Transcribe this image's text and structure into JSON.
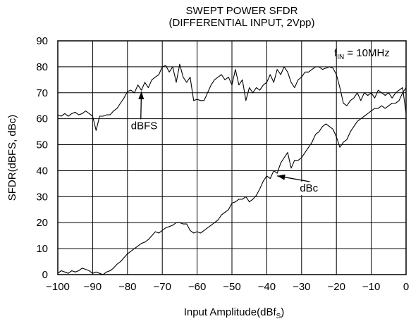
{
  "chart_data": {
    "type": "line",
    "title": "SWEPT POWER SFDR",
    "subtitle": "(DIFFERENTIAL INPUT, 2Vpp)",
    "xlabel": "Input Amplitude(dBf",
    "xlabel_sub": "S",
    "xlabel_close": ")",
    "ylabel": "SFDR(dBFS, dBc)",
    "xlim": [
      -100,
      0
    ],
    "ylim": [
      0,
      90
    ],
    "x_ticks": [
      -100,
      -90,
      -80,
      -70,
      -60,
      -50,
      -40,
      -30,
      -20,
      -10,
      0
    ],
    "x_tick_labels": [
      "−100",
      "−90",
      "−80",
      "−70",
      "−60",
      "−50",
      "−40",
      "−30",
      "−20",
      "−10",
      "0"
    ],
    "y_ticks": [
      0,
      10,
      20,
      30,
      40,
      50,
      60,
      70,
      80,
      90
    ],
    "y_tick_labels": [
      "0",
      "10",
      "20",
      "30",
      "40",
      "50",
      "60",
      "70",
      "80",
      "90"
    ],
    "grid": true,
    "annotation": {
      "prefix": "f",
      "sub": "IN",
      "suffix": " = 10MHz"
    },
    "series": [
      {
        "name": "dBFS",
        "color": "#000000",
        "x": [
          -100,
          -99,
          -98,
          -97,
          -96,
          -95,
          -94,
          -93,
          -92,
          -91,
          -90,
          -89,
          -88,
          -87,
          -86,
          -85,
          -84,
          -83,
          -82,
          -81,
          -80,
          -79,
          -78,
          -77,
          -76,
          -75,
          -74,
          -73,
          -72,
          -71,
          -70,
          -69,
          -68,
          -67,
          -66,
          -65,
          -64,
          -63,
          -62,
          -61,
          -60,
          -59,
          -58,
          -57,
          -56,
          -55,
          -54,
          -53,
          -52,
          -51,
          -50,
          -49,
          -48,
          -47,
          -46,
          -45,
          -44,
          -43,
          -42,
          -41,
          -40,
          -39,
          -38,
          -37,
          -36,
          -35,
          -34,
          -33,
          -32,
          -31,
          -30,
          -29,
          -28,
          -27,
          -26,
          -25,
          -24,
          -23,
          -22,
          -21,
          -20,
          -19,
          -18,
          -17,
          -16,
          -15,
          -14,
          -13,
          -12,
          -11,
          -10,
          -9,
          -8,
          -7,
          -6,
          -5,
          -4,
          -3,
          -2,
          -1,
          0
        ],
        "values": [
          61.5,
          61,
          62,
          61,
          62,
          62.5,
          61.5,
          62,
          63,
          62,
          61,
          55.5,
          61,
          61,
          61.5,
          61.5,
          63,
          64,
          66,
          68,
          70.5,
          71,
          70,
          73,
          71,
          74,
          72,
          75,
          76,
          77,
          80,
          80.5,
          78,
          80,
          74,
          81,
          76,
          74,
          76,
          67,
          67.5,
          67,
          67,
          70,
          73,
          75,
          76,
          77,
          75,
          76,
          73,
          79,
          73,
          75,
          67,
          72,
          70,
          72,
          71,
          73,
          74,
          77,
          74,
          79,
          77,
          80,
          78,
          74,
          72,
          75,
          76,
          78,
          78,
          79,
          80,
          80,
          79,
          79.5,
          80,
          79.5,
          77,
          72,
          66,
          65,
          67,
          68,
          70,
          67,
          70,
          69,
          70,
          68,
          71,
          70,
          69,
          70,
          68,
          70,
          71,
          72,
          62
        ]
      },
      {
        "name": "dBc",
        "color": "#000000",
        "x": [
          -100,
          -99,
          -98,
          -97,
          -96,
          -95,
          -94,
          -93,
          -92,
          -91,
          -90,
          -89,
          -88,
          -87,
          -86,
          -85,
          -84,
          -83,
          -82,
          -81,
          -80,
          -79,
          -78,
          -77,
          -76,
          -75,
          -74,
          -73,
          -72,
          -71,
          -70,
          -69,
          -68,
          -67,
          -66,
          -65,
          -64,
          -63,
          -62,
          -61,
          -60,
          -59,
          -58,
          -57,
          -56,
          -55,
          -54,
          -53,
          -52,
          -51,
          -50,
          -49,
          -48,
          -47,
          -46,
          -45,
          -44,
          -43,
          -42,
          -41,
          -40,
          -39,
          -38,
          -37,
          -36,
          -35,
          -34,
          -33,
          -32,
          -31,
          -30,
          -29,
          -28,
          -27,
          -26,
          -25,
          -24,
          -23,
          -22,
          -21,
          -20,
          -19,
          -18,
          -17,
          -16,
          -15,
          -14,
          -13,
          -12,
          -11,
          -10,
          -9,
          -8,
          -7,
          -6,
          -5,
          -4,
          -3,
          -2,
          -1,
          0
        ],
        "values": [
          0.5,
          1.5,
          1,
          0.5,
          1.5,
          1,
          1.5,
          2.5,
          2,
          1.5,
          0.5,
          1,
          0.5,
          0,
          1,
          1.5,
          2.5,
          4,
          5,
          6.5,
          8,
          9,
          10,
          11,
          12,
          12.5,
          13.5,
          15,
          16.5,
          16,
          17,
          18,
          18.5,
          19,
          20,
          20,
          19.5,
          19.5,
          17,
          16,
          16.5,
          16,
          17,
          18,
          19,
          20,
          21,
          23,
          24,
          25,
          27.5,
          28,
          29,
          29,
          30,
          28,
          29,
          30.5,
          33,
          36,
          38,
          37,
          40,
          39,
          43,
          45,
          47,
          41,
          44,
          44,
          45,
          47,
          49,
          51,
          54,
          55,
          57,
          58,
          57,
          56,
          53,
          49,
          51,
          52,
          55,
          57,
          59,
          60,
          61,
          62,
          63,
          64,
          64,
          65,
          64,
          65,
          66,
          66,
          67,
          70,
          72
        ]
      }
    ],
    "labels": [
      {
        "text": "dBFS",
        "x": -79,
        "y": 56,
        "arrow_to": [
          -76,
          70.5
        ]
      },
      {
        "text": "dBc",
        "x": -30.5,
        "y": 32,
        "arrow_to": [
          -37,
          38
        ]
      }
    ]
  }
}
